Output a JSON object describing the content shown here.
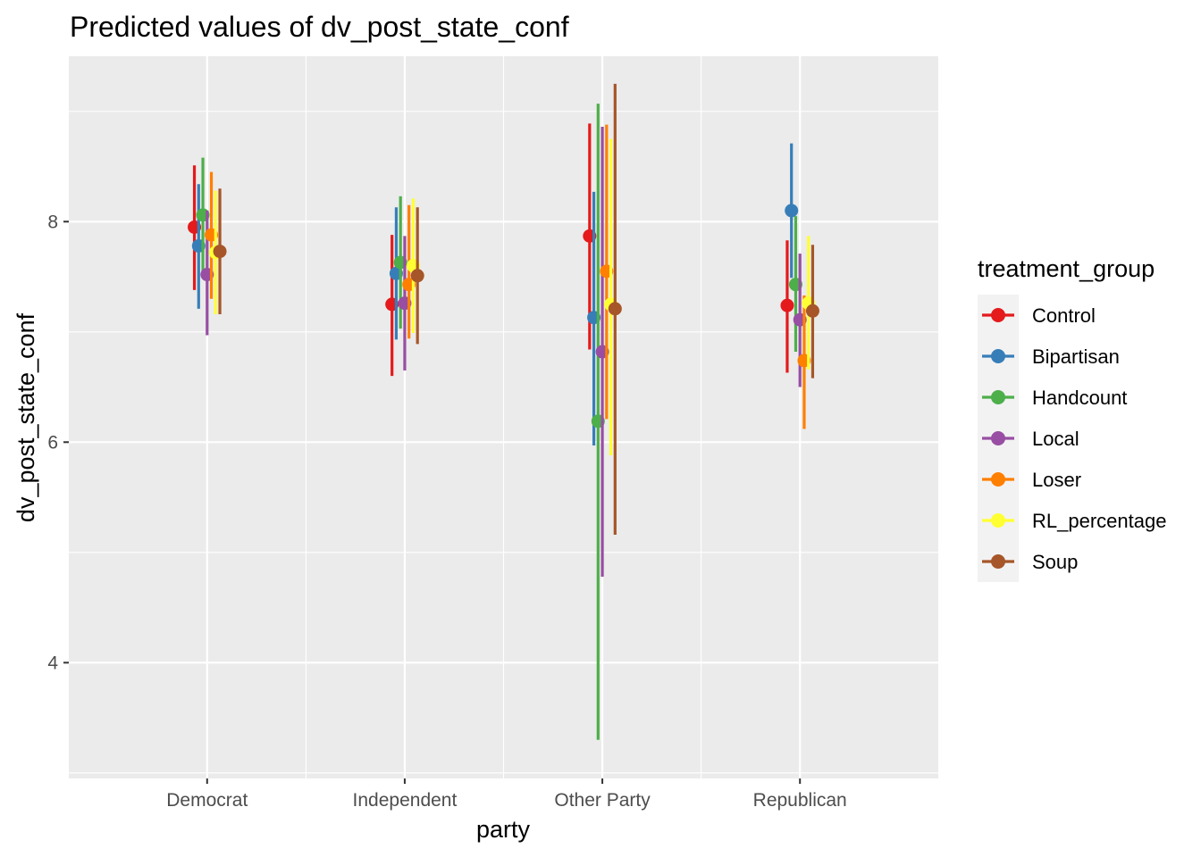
{
  "chart_data": {
    "type": "scatter",
    "title": "Predicted values of dv_post_state_conf",
    "xlabel": "party",
    "ylabel": "dv_post_state_conf",
    "categories": [
      "Democrat",
      "Independent",
      "Other Party",
      "Republican"
    ],
    "y_ticks": [
      4,
      6,
      8
    ],
    "ylim": [
      2.95,
      9.5
    ],
    "grid": true,
    "legend": {
      "title": "treatment_group",
      "position": "right"
    },
    "series": [
      {
        "name": "Control",
        "color": "#E41A1C",
        "values": [
          7.95,
          7.25,
          7.87,
          7.24
        ],
        "lower": [
          7.38,
          6.6,
          6.84,
          6.63
        ],
        "upper": [
          8.51,
          7.88,
          8.89,
          7.83
        ]
      },
      {
        "name": "Bipartisan",
        "color": "#377EB8",
        "values": [
          7.78,
          7.53,
          7.13,
          8.1
        ],
        "lower": [
          7.21,
          6.93,
          5.97,
          7.49
        ],
        "upper": [
          8.34,
          8.13,
          8.27,
          8.71
        ]
      },
      {
        "name": "Handcount",
        "color": "#4DAF4A",
        "values": [
          8.06,
          7.63,
          6.19,
          7.43
        ],
        "lower": [
          7.55,
          7.03,
          3.3,
          6.82
        ],
        "upper": [
          8.58,
          8.23,
          9.07,
          8.05
        ]
      },
      {
        "name": "Local",
        "color": "#984EA3",
        "values": [
          7.52,
          7.26,
          6.82,
          7.11
        ],
        "lower": [
          6.97,
          6.65,
          4.78,
          6.5
        ],
        "upper": [
          8.1,
          7.87,
          8.86,
          7.71
        ]
      },
      {
        "name": "Loser",
        "color": "#FF7F00",
        "values": [
          7.88,
          7.43,
          7.55,
          6.74
        ],
        "lower": [
          7.3,
          6.94,
          6.21,
          6.12
        ],
        "upper": [
          8.45,
          8.15,
          8.88,
          7.33
        ]
      },
      {
        "name": "RL_percentage",
        "color": "#FFFF33",
        "values": [
          7.72,
          7.6,
          7.25,
          7.26
        ],
        "lower": [
          7.16,
          6.99,
          5.88,
          6.66
        ],
        "upper": [
          8.28,
          8.21,
          8.75,
          7.87
        ]
      },
      {
        "name": "Soup",
        "color": "#A65628",
        "values": [
          7.73,
          7.51,
          7.21,
          7.19
        ],
        "lower": [
          7.16,
          6.89,
          5.16,
          6.58
        ],
        "upper": [
          8.3,
          8.13,
          9.25,
          7.79
        ]
      }
    ]
  }
}
